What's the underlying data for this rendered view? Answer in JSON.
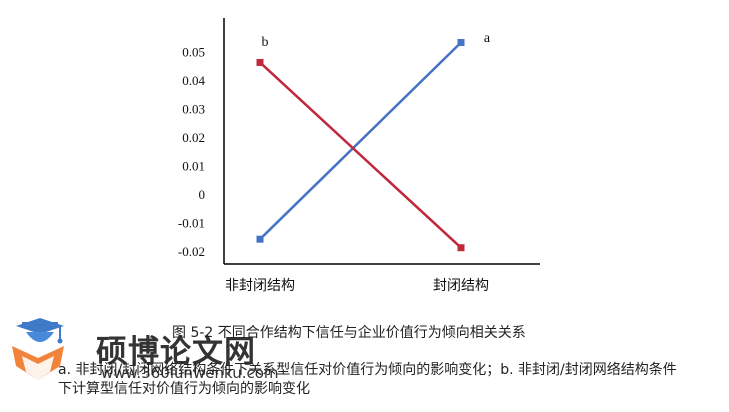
{
  "chart_data": {
    "type": "line",
    "categories": [
      "非封闭结构",
      "封闭结构"
    ],
    "series": [
      {
        "name": "a",
        "values": [
          -0.0155,
          0.0535
        ],
        "color": "#4472c4"
      },
      {
        "name": "b",
        "values": [
          0.0465,
          -0.0185
        ],
        "color": "#c0283b"
      }
    ],
    "yticks": [
      "0.05",
      "0.04",
      "0.03",
      "0.02",
      "0.01",
      "0",
      "-0.01",
      "-0.02"
    ],
    "ylim": [
      -0.025,
      0.063
    ],
    "grid": false,
    "legend": "none"
  },
  "caption": "图 5-2 不同合作结构下信任与企业价值行为倾向相关关系",
  "note": "a. 非封闭/封闭网络结构条件下关系型信任对价值行为倾向的影响变化；b. 非封闭/封闭网络结构条件下计算型信任对价值行为倾向的影响变化",
  "watermark": {
    "brand": "硕博论文网",
    "url": "www.360lunwenku.com",
    "icon": "graduation-cap-book-icon"
  }
}
